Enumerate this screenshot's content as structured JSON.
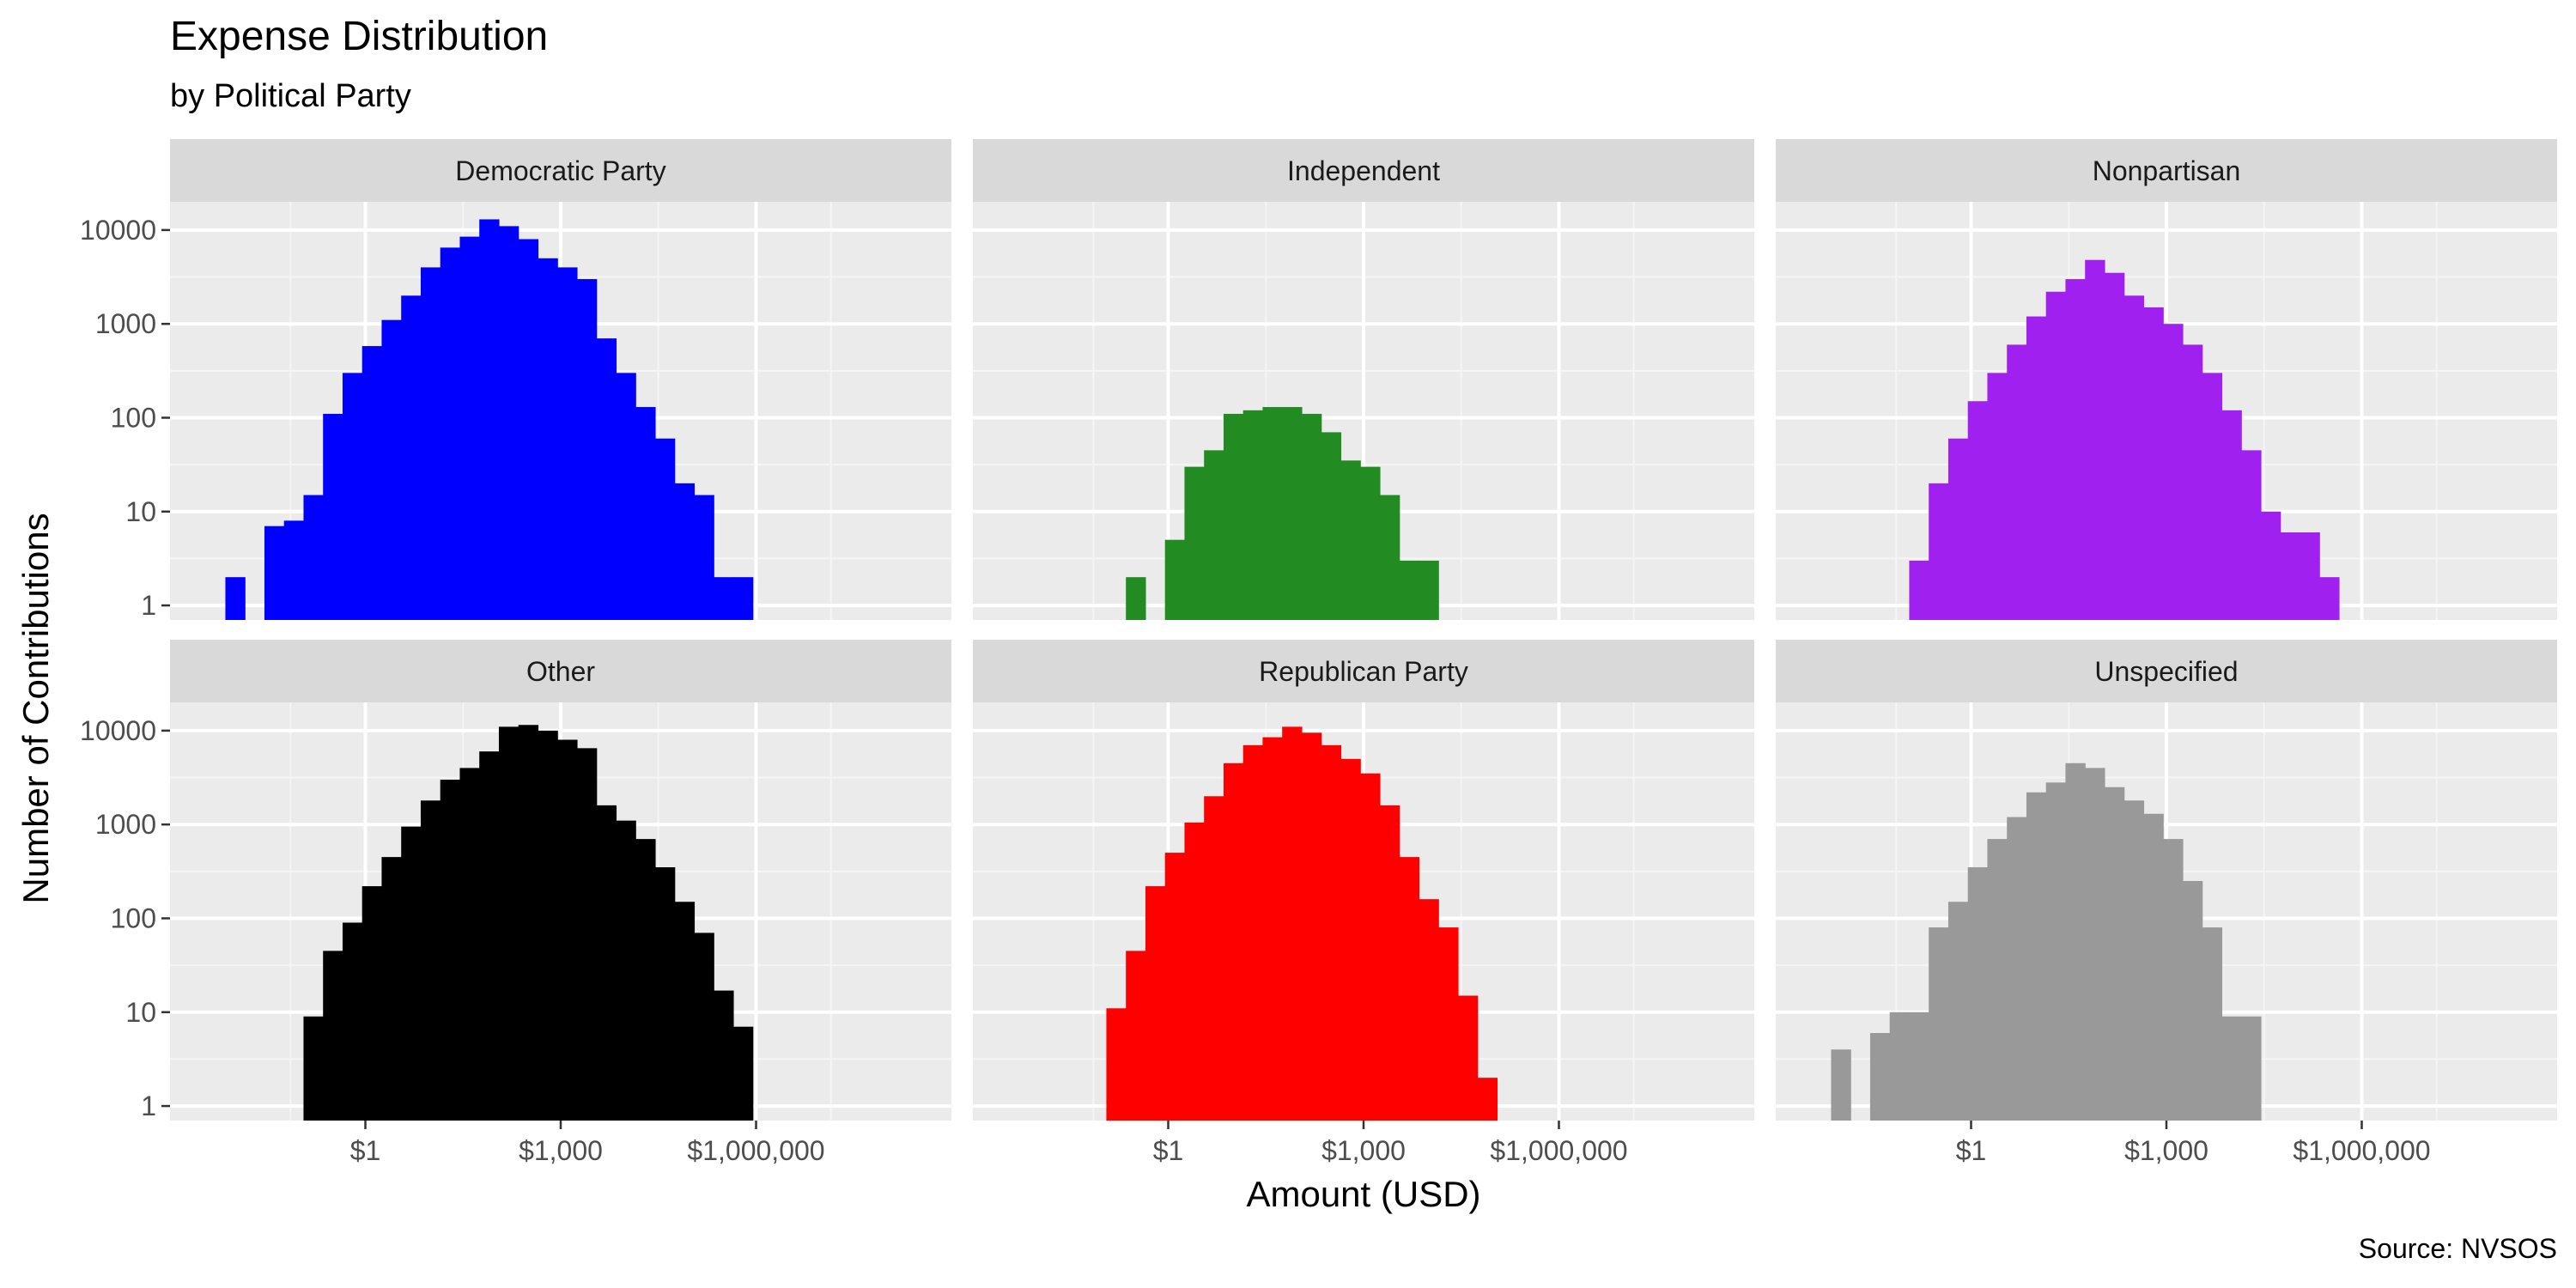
{
  "chart_data": {
    "type": "bar",
    "title": "Expense Distribution",
    "subtitle": "by Political Party",
    "xlabel": "Amount (USD)",
    "ylabel": "Number of Contributions",
    "caption": "Source: NVSOS",
    "x_scale": "log10",
    "y_scale": "log10",
    "xlim": [
      0.001,
      1000000000
    ],
    "ylim": [
      0.7,
      20000
    ],
    "x_ticks": [
      {
        "value": 1,
        "label": "$1"
      },
      {
        "value": 1000,
        "label": "$1,000"
      },
      {
        "value": 1000000,
        "label": "$1,000,000"
      }
    ],
    "y_ticks": [
      {
        "value": 1,
        "label": "1"
      },
      {
        "value": 10,
        "label": "10"
      },
      {
        "value": 100,
        "label": "100"
      },
      {
        "value": 1000,
        "label": "1000"
      },
      {
        "value": 10000,
        "label": "10000"
      }
    ],
    "grid": true,
    "legend": "none",
    "bin_log10_width": 0.3,
    "panels": [
      {
        "name": "Democratic Party",
        "color": "#0000FF",
        "bins": [
          [
            -2.0,
            2
          ],
          [
            -1.4,
            7
          ],
          [
            -1.1,
            8
          ],
          [
            -0.8,
            15
          ],
          [
            -0.5,
            110
          ],
          [
            -0.2,
            300
          ],
          [
            0.1,
            580
          ],
          [
            0.4,
            1100
          ],
          [
            0.7,
            2000
          ],
          [
            1.0,
            4000
          ],
          [
            1.3,
            6500
          ],
          [
            1.6,
            8500
          ],
          [
            1.9,
            13000
          ],
          [
            2.2,
            11000
          ],
          [
            2.5,
            8000
          ],
          [
            2.8,
            5000
          ],
          [
            3.1,
            4000
          ],
          [
            3.4,
            3000
          ],
          [
            3.7,
            700
          ],
          [
            4.0,
            300
          ],
          [
            4.3,
            130
          ],
          [
            4.6,
            60
          ],
          [
            4.9,
            20
          ],
          [
            5.2,
            15
          ],
          [
            5.5,
            2
          ],
          [
            5.8,
            2
          ]
        ]
      },
      {
        "name": "Independent",
        "color": "#228B22",
        "bins": [
          [
            -0.5,
            2
          ],
          [
            0.1,
            5
          ],
          [
            0.4,
            30
          ],
          [
            0.7,
            45
          ],
          [
            1.0,
            110
          ],
          [
            1.3,
            120
          ],
          [
            1.6,
            130
          ],
          [
            1.9,
            130
          ],
          [
            2.2,
            110
          ],
          [
            2.5,
            70
          ],
          [
            2.8,
            35
          ],
          [
            3.1,
            30
          ],
          [
            3.4,
            15
          ],
          [
            3.7,
            3
          ],
          [
            4.0,
            3
          ]
        ]
      },
      {
        "name": "Nonpartisan",
        "color": "#A020F0",
        "bins": [
          [
            -0.8,
            3
          ],
          [
            -0.5,
            20
          ],
          [
            -0.2,
            60
          ],
          [
            0.1,
            150
          ],
          [
            0.4,
            300
          ],
          [
            0.7,
            600
          ],
          [
            1.0,
            1200
          ],
          [
            1.3,
            2200
          ],
          [
            1.6,
            3000
          ],
          [
            1.9,
            4800
          ],
          [
            2.2,
            3500
          ],
          [
            2.5,
            2000
          ],
          [
            2.8,
            1500
          ],
          [
            3.1,
            1000
          ],
          [
            3.4,
            600
          ],
          [
            3.7,
            300
          ],
          [
            4.0,
            120
          ],
          [
            4.3,
            45
          ],
          [
            4.6,
            10
          ],
          [
            4.9,
            6
          ],
          [
            5.2,
            6
          ],
          [
            5.5,
            2
          ]
        ]
      },
      {
        "name": "Other",
        "color": "#000000",
        "bins": [
          [
            -0.8,
            9
          ],
          [
            -0.5,
            45
          ],
          [
            -0.2,
            90
          ],
          [
            0.1,
            220
          ],
          [
            0.4,
            450
          ],
          [
            0.7,
            950
          ],
          [
            1.0,
            1800
          ],
          [
            1.3,
            3000
          ],
          [
            1.6,
            4000
          ],
          [
            1.9,
            6000
          ],
          [
            2.2,
            11000
          ],
          [
            2.5,
            11500
          ],
          [
            2.8,
            10000
          ],
          [
            3.1,
            8000
          ],
          [
            3.4,
            6500
          ],
          [
            3.7,
            1600
          ],
          [
            4.0,
            1100
          ],
          [
            4.3,
            700
          ],
          [
            4.6,
            350
          ],
          [
            4.9,
            150
          ],
          [
            5.2,
            70
          ],
          [
            5.5,
            17
          ],
          [
            5.8,
            7
          ]
        ]
      },
      {
        "name": "Republican Party",
        "color": "#FF0000",
        "bins": [
          [
            -0.8,
            11
          ],
          [
            -0.5,
            45
          ],
          [
            -0.2,
            220
          ],
          [
            0.1,
            500
          ],
          [
            0.4,
            1050
          ],
          [
            0.7,
            2000
          ],
          [
            1.0,
            4500
          ],
          [
            1.3,
            7000
          ],
          [
            1.6,
            8500
          ],
          [
            1.9,
            11000
          ],
          [
            2.2,
            9500
          ],
          [
            2.5,
            7000
          ],
          [
            2.8,
            5000
          ],
          [
            3.1,
            3500
          ],
          [
            3.4,
            1600
          ],
          [
            3.7,
            450
          ],
          [
            4.0,
            160
          ],
          [
            4.3,
            80
          ],
          [
            4.6,
            15
          ],
          [
            4.9,
            2
          ]
        ]
      },
      {
        "name": "Unspecified",
        "color": "#999999",
        "bins": [
          [
            -2.0,
            4
          ],
          [
            -1.4,
            6
          ],
          [
            -1.1,
            10
          ],
          [
            -0.8,
            10
          ],
          [
            -0.5,
            80
          ],
          [
            -0.2,
            150
          ],
          [
            0.1,
            350
          ],
          [
            0.4,
            700
          ],
          [
            0.7,
            1200
          ],
          [
            1.0,
            2200
          ],
          [
            1.3,
            2800
          ],
          [
            1.6,
            4500
          ],
          [
            1.9,
            4000
          ],
          [
            2.2,
            2500
          ],
          [
            2.5,
            1800
          ],
          [
            2.8,
            1300
          ],
          [
            3.1,
            700
          ],
          [
            3.4,
            250
          ],
          [
            3.7,
            80
          ],
          [
            4.0,
            9
          ],
          [
            4.3,
            9
          ]
        ]
      }
    ]
  }
}
